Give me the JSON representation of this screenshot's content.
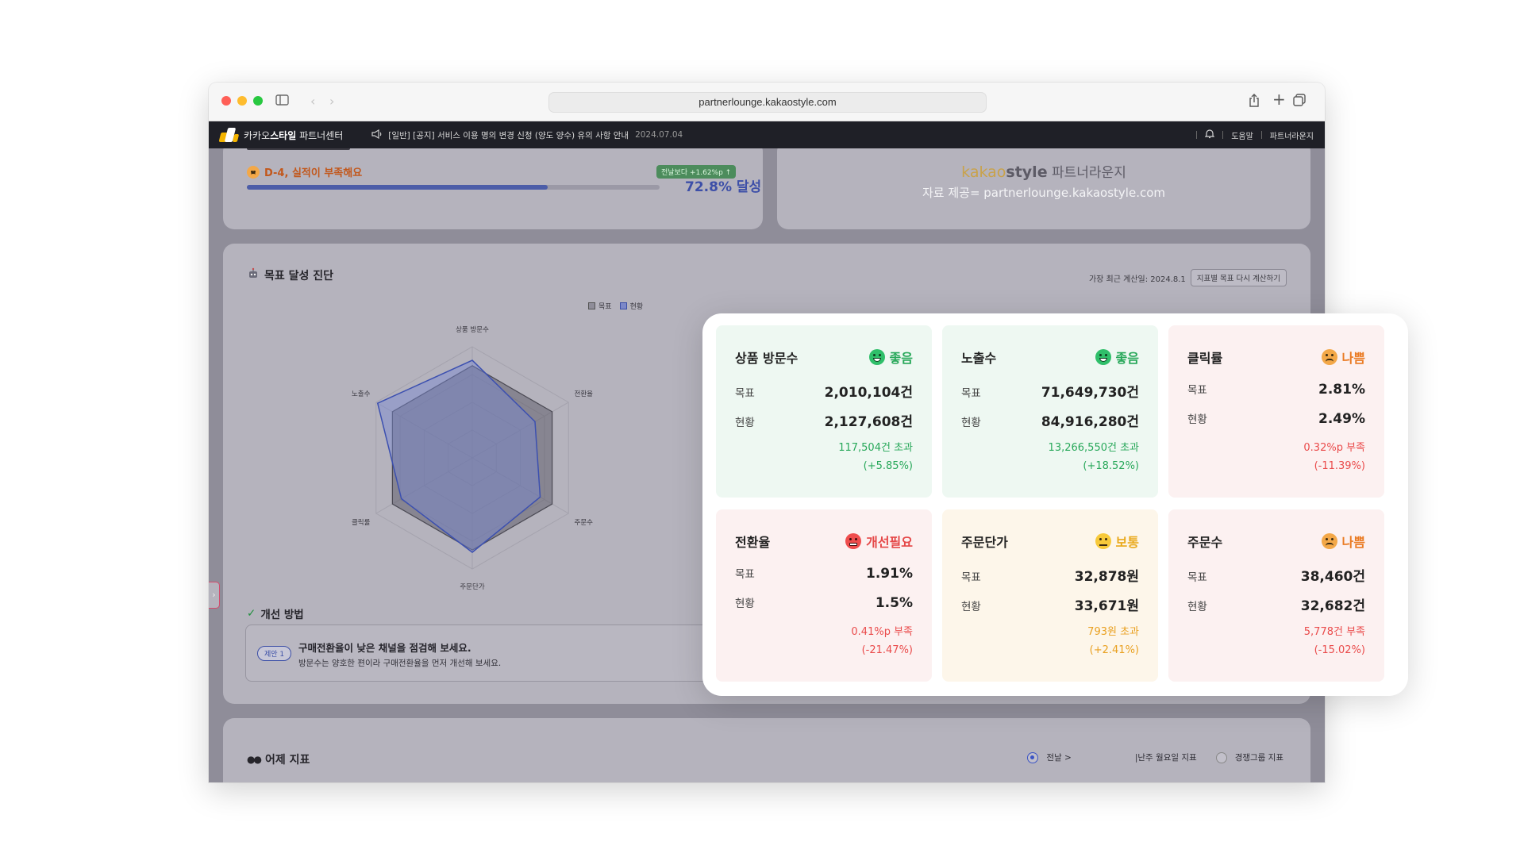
{
  "browser": {
    "url": "partnerlounge.kakaostyle.com"
  },
  "navbar": {
    "brand_prefix": "카카오",
    "brand_bold": "스타일",
    "brand_suffix": " 파트너센터",
    "notice_text": "[일반] [공지] 서비스 이용 명의 변경 신청 (양도 양수) 유의 사항 안내",
    "notice_date": "2024.07.04",
    "help_label": "도움말",
    "lounge_label": "파트너라운지"
  },
  "progress": {
    "label": "D-4, 실적이 부족해요",
    "chip": "전날보다 +1.62%p ↑",
    "fill_percent": 72.8,
    "value_text": "72.8% 달성"
  },
  "watermark": {
    "logo_kakao": "kakao",
    "logo_style": "style",
    "logo_suffix": " 파트너라운지",
    "source": "자료 제공= partnerlounge.kakaostyle.com"
  },
  "diagnosis": {
    "title": "목표 달성 진단",
    "calc_label": "가장 최근 계산일: 2024.8.1",
    "recalc_button": "지표별 목표 다시 계산하기",
    "legend_target": "목표",
    "legend_current": "현황"
  },
  "radar": {
    "axes": [
      "상품 방문수",
      "전환율",
      "주문수",
      "주문단가",
      "클릭률",
      "노출수"
    ],
    "target": [
      1,
      1,
      1,
      1,
      1,
      1
    ],
    "current": [
      1.058,
      0.785,
      0.85,
      1.024,
      0.887,
      1.185
    ]
  },
  "improve": {
    "title": "개선 방법",
    "tag": "제안 1",
    "headline": "구매전환율이 낮은 채널을 점검해 보세요.",
    "description": "방문수는 양호한 편이라 구매전환율을 먼저 개선해 보세요."
  },
  "yesterday": {
    "title": "어제 지표",
    "option_1": "전날 >",
    "option_2": "|난주 월요일 지표",
    "option_3": "경쟁그룹 지표"
  },
  "metrics": [
    {
      "name": "상품 방문수",
      "status": "좋음",
      "kind": "good",
      "target_key": "목표",
      "target": "2,010,104건",
      "current_key": "현황",
      "current": "2,127,608건",
      "diff_1": "117,504건 초과",
      "diff_2": "(+5.85%)"
    },
    {
      "name": "노출수",
      "status": "좋음",
      "kind": "good",
      "target_key": "목표",
      "target": "71,649,730건",
      "current_key": "현황",
      "current": "84,916,280건",
      "diff_1": "13,266,550건 초과",
      "diff_2": "(+18.52%)"
    },
    {
      "name": "클릭률",
      "status": "나쁨",
      "kind": "bad",
      "target_key": "목표",
      "target": "2.81%",
      "current_key": "현황",
      "current": "2.49%",
      "diff_1": "0.32%p 부족",
      "diff_2": "(-11.39%)"
    },
    {
      "name": "전환율",
      "status": "개선필요",
      "kind": "need",
      "target_key": "목표",
      "target": "1.91%",
      "current_key": "현황",
      "current": "1.5%",
      "diff_1": "0.41%p 부족",
      "diff_2": "(-21.47%)"
    },
    {
      "name": "주문단가",
      "status": "보통",
      "kind": "normal",
      "target_key": "목표",
      "target": "32,878원",
      "current_key": "현황",
      "current": "33,671원",
      "diff_1": "793원 초과",
      "diff_2": "(+2.41%)"
    },
    {
      "name": "주문수",
      "status": "나쁨",
      "kind": "bad",
      "target_key": "목표",
      "target": "38,460건",
      "current_key": "현황",
      "current": "32,682건",
      "diff_1": "5,778건 부족",
      "diff_2": "(-15.02%)"
    }
  ]
}
